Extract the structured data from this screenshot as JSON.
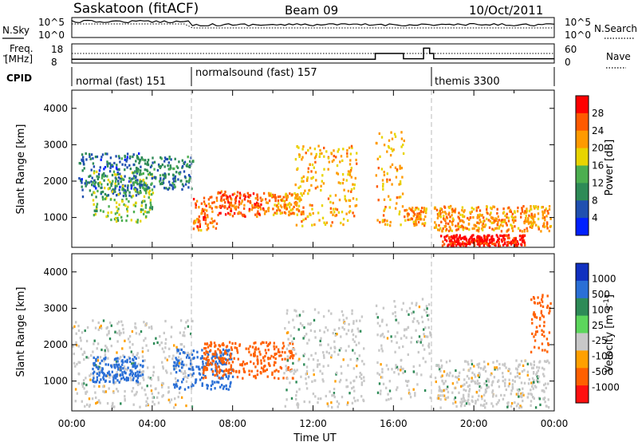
{
  "header": {
    "station": "Saskatoon (fitACF)",
    "beam": "Beam 09",
    "date": "10/Oct/2011"
  },
  "noise_panel": {
    "left_label": "N.Sky",
    "right_label": "N.Search",
    "left_ticks": [
      "10^5",
      "10^0"
    ],
    "right_ticks": [
      "10^5",
      "10^0"
    ]
  },
  "freq_panel": {
    "left_label_line1": "Freq.",
    "left_label_line2": "[MHz]",
    "right_label": "Nave",
    "left_ticks": [
      "18",
      "8"
    ],
    "right_ticks": [
      "60",
      "0"
    ],
    "freq_mhz": 10,
    "nave_steps": [
      {
        "t0": 0,
        "t1": 15.1,
        "nave": 10
      },
      {
        "t0": 15.1,
        "t1": 16.5,
        "nave": 30
      },
      {
        "t0": 16.5,
        "t1": 17.5,
        "nave": 12
      },
      {
        "t0": 17.5,
        "t1": 17.8,
        "nave": 48
      },
      {
        "t0": 17.8,
        "t1": 18.0,
        "nave": 30
      },
      {
        "t0": 18.0,
        "t1": 24,
        "nave": 12
      }
    ]
  },
  "cpid": {
    "label": "CPID",
    "segments": [
      {
        "start_hour": 0,
        "name": "normal (fast) 151"
      },
      {
        "start_hour": 6,
        "name": "normalsound (fast) 157"
      },
      {
        "start_hour": 18,
        "name": "themis 3300"
      }
    ]
  },
  "power_panel": {
    "ylabel": "Slant Range [km]",
    "yticks": [
      "4000",
      "3000",
      "2000",
      "1000"
    ],
    "colorbar_label": "Power [dB]",
    "colorbar_ticks": [
      "28",
      "24",
      "20",
      "16",
      "12",
      "8",
      "4"
    ],
    "colorbar_colors": [
      "#ff0000",
      "#ff5a00",
      "#ff9a00",
      "#e8d400",
      "#4caf50",
      "#2e8b57",
      "#2050b0",
      "#0020ff"
    ]
  },
  "velocity_panel": {
    "ylabel": "Slant Range [km]",
    "yticks": [
      "4000",
      "3000",
      "2000",
      "1000"
    ],
    "colorbar_label": "Velocity [m s",
    "colorbar_label_sup": "-1",
    "colorbar_label_end": "]",
    "colorbar_ticks": [
      "1000",
      "500",
      "100",
      "25",
      "-25",
      "-100",
      "-500",
      "-1000"
    ],
    "colorbar_colors": [
      "#1030c0",
      "#2a6fd6",
      "#2e8b57",
      "#5cd65c",
      "#c8c8c8",
      "#ffa000",
      "#ff6000",
      "#ff1010"
    ]
  },
  "x_axis": {
    "label": "Time UT",
    "ticks": [
      "00:00",
      "04:00",
      "08:00",
      "12:00",
      "16:00",
      "20:00",
      "00:00"
    ]
  },
  "chart_data": [
    {
      "type": "heatmap",
      "title": "Saskatoon (fitACF) Beam 09 10/Oct/2011",
      "quantity": "Power",
      "unit": "dB",
      "xlabel": "Time UT",
      "ylabel": "Slant Range [km]",
      "xlim": [
        0,
        24
      ],
      "ylim": [
        180,
        4500
      ],
      "colorscale_range": [
        0,
        30
      ],
      "regions": [
        {
          "t0": 0.3,
          "t1": 3.5,
          "r0": 1600,
          "r1": 2800,
          "value": 6
        },
        {
          "t0": 1.0,
          "t1": 4.0,
          "r0": 900,
          "r1": 2300,
          "value": 14
        },
        {
          "t0": 3.0,
          "t1": 6.0,
          "r0": 1800,
          "r1": 2700,
          "value": 8
        },
        {
          "t0": 6.0,
          "t1": 7.2,
          "r0": 650,
          "r1": 1600,
          "value": 24
        },
        {
          "t0": 7.2,
          "t1": 9.5,
          "r0": 1050,
          "r1": 1750,
          "value": 26
        },
        {
          "t0": 9.5,
          "t1": 11.5,
          "r0": 1100,
          "r1": 1700,
          "value": 22
        },
        {
          "t0": 11.0,
          "t1": 14.2,
          "r0": 800,
          "r1": 3000,
          "value": 20
        },
        {
          "t0": 15.1,
          "t1": 16.5,
          "r0": 800,
          "r1": 3400,
          "value": 20
        },
        {
          "t0": 16.5,
          "t1": 17.6,
          "r0": 800,
          "r1": 1300,
          "value": 22
        },
        {
          "t0": 18.0,
          "t1": 23.8,
          "r0": 650,
          "r1": 1350,
          "value": 22
        },
        {
          "t0": 18.3,
          "t1": 22.5,
          "r0": 250,
          "r1": 550,
          "value": 30
        }
      ]
    },
    {
      "type": "heatmap",
      "title": "Saskatoon (fitACF) Beam 09 10/Oct/2011",
      "quantity": "Velocity",
      "unit": "m s-1",
      "xlabel": "Time UT",
      "ylabel": "Slant Range [km]",
      "xlim": [
        0,
        24
      ],
      "ylim": [
        180,
        4500
      ],
      "regions": [
        {
          "t0": 0.0,
          "t1": 6.0,
          "r0": 300,
          "r1": 2700,
          "value": 0
        },
        {
          "t0": 1.0,
          "t1": 3.5,
          "r0": 1000,
          "r1": 1700,
          "value": 200
        },
        {
          "t0": 5.0,
          "t1": 8.0,
          "r0": 800,
          "r1": 1900,
          "value": 300
        },
        {
          "t0": 6.5,
          "t1": 11.0,
          "r0": 1100,
          "r1": 2100,
          "value": -300
        },
        {
          "t0": 10.5,
          "t1": 14.5,
          "r0": 300,
          "r1": 3000,
          "value": 0
        },
        {
          "t0": 15.1,
          "t1": 17.8,
          "r0": 500,
          "r1": 3300,
          "value": 0
        },
        {
          "t0": 18.0,
          "t1": 23.8,
          "r0": 300,
          "r1": 1600,
          "value": 0
        },
        {
          "t0": 22.8,
          "t1": 23.8,
          "r0": 1800,
          "r1": 3400,
          "value": -150
        }
      ]
    }
  ]
}
